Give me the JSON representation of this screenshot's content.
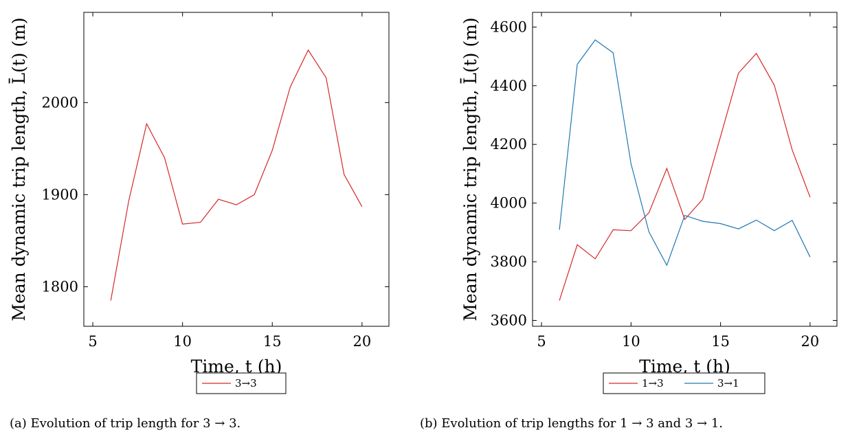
{
  "chart_data": [
    {
      "type": "line",
      "xlabel": "Time, t (h)",
      "ylabel": "Mean dynamic trip length, L̄(t) (m)",
      "xlim": [
        4.5,
        21.5
      ],
      "ylim": [
        1757,
        2098
      ],
      "xticks": [
        "5",
        "10",
        "15",
        "20"
      ],
      "yticks": [
        "1800",
        "1900",
        "2000"
      ],
      "grid": false,
      "legend_position": "below",
      "caption": "(a) Evolution of trip length for 3 → 3.",
      "x": [
        6,
        7,
        8,
        9,
        10,
        11,
        12,
        13,
        14,
        15,
        16,
        17,
        18,
        19,
        20
      ],
      "series": [
        {
          "name": "3→3",
          "color": "#d62728",
          "values": [
            1785,
            1893,
            1977,
            1940,
            1868,
            1870,
            1895,
            1889,
            1900,
            1948,
            2017,
            2057,
            2027,
            1922,
            1887
          ]
        }
      ]
    },
    {
      "type": "line",
      "xlabel": "Time, t (h)",
      "ylabel": "Mean dynamic trip length, L̄(t) (m)",
      "xlim": [
        4.5,
        21.5
      ],
      "ylim": [
        3580,
        4650
      ],
      "xticks": [
        "5",
        "10",
        "15",
        "20"
      ],
      "yticks": [
        "3600",
        "3800",
        "4000",
        "4200",
        "4400",
        "4600"
      ],
      "grid": false,
      "legend_position": "below",
      "caption": "(b) Evolution of trip lengths for 1 → 3 and 3 → 1.",
      "x": [
        6,
        7,
        8,
        9,
        10,
        11,
        12,
        13,
        14,
        15,
        16,
        17,
        18,
        19,
        20
      ],
      "series": [
        {
          "name": "1→3",
          "color": "#d62728",
          "values": [
            3668,
            3858,
            3810,
            3909,
            3906,
            3967,
            4118,
            3944,
            4013,
            4227,
            4443,
            4510,
            4402,
            4181,
            4020
          ]
        },
        {
          "name": "3→1",
          "color": "#1f77b4",
          "values": [
            3909,
            4473,
            4556,
            4512,
            4134,
            3902,
            3788,
            3958,
            3938,
            3930,
            3912,
            3942,
            3906,
            3941,
            3816
          ]
        }
      ]
    }
  ]
}
